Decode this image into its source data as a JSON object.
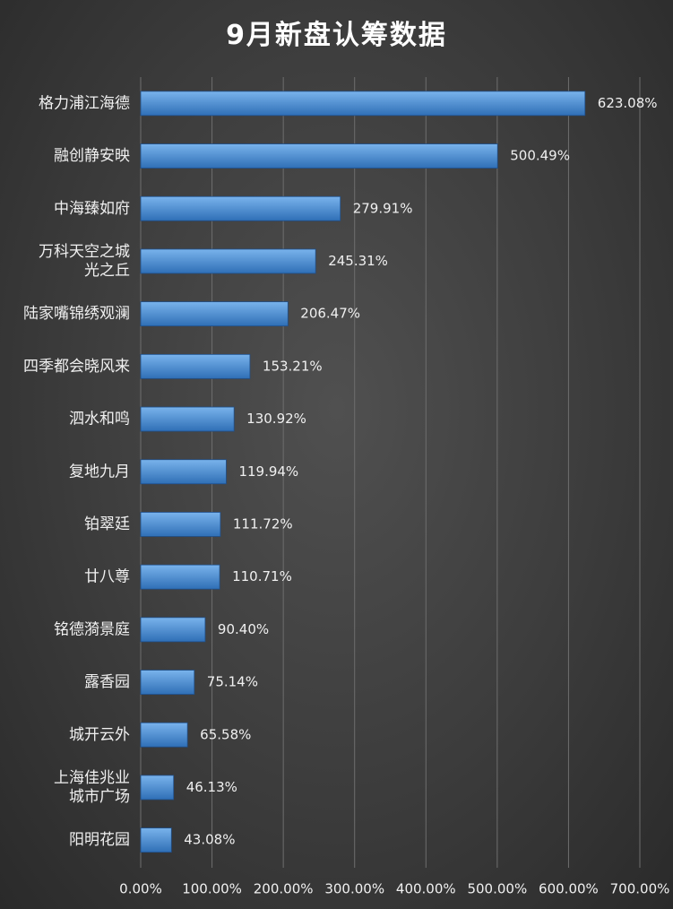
{
  "chart_data": {
    "type": "bar",
    "orientation": "horizontal",
    "title": "9月新盘认筹数据",
    "xlabel": "",
    "ylabel": "",
    "categories": [
      [
        "格力浦江海德"
      ],
      [
        "融创静安映"
      ],
      [
        "中海臻如府"
      ],
      [
        "万科天空之城",
        "光之丘"
      ],
      [
        "陆家嘴锦绣观澜"
      ],
      [
        "四季都会晓风来"
      ],
      [
        "泗水和鸣"
      ],
      [
        "复地九月"
      ],
      [
        "铂翠廷"
      ],
      [
        "廿八尊"
      ],
      [
        "铭德漪景庭"
      ],
      [
        "露香园"
      ],
      [
        "城开云外"
      ],
      [
        "上海佳兆业",
        "城市广场"
      ],
      [
        "阳明花园"
      ]
    ],
    "values": [
      623.08,
      500.49,
      279.91,
      245.31,
      206.47,
      153.21,
      130.92,
      119.94,
      111.72,
      110.71,
      90.4,
      75.14,
      65.58,
      46.13,
      43.08
    ],
    "value_labels": [
      "623.08%",
      "500.49%",
      "279.91%",
      "245.31%",
      "206.47%",
      "153.21%",
      "130.92%",
      "119.94%",
      "111.72%",
      "110.71%",
      "90.40%",
      "75.14%",
      "65.58%",
      "46.13%",
      "43.08%"
    ],
    "xlim": [
      0,
      700
    ],
    "ticks": [
      0,
      100,
      200,
      300,
      400,
      500,
      600,
      700
    ],
    "tick_labels": [
      "0.00%",
      "100.00%",
      "200.00%",
      "300.00%",
      "400.00%",
      "500.00%",
      "600.00%",
      "700.00%"
    ],
    "grid": true,
    "legend": "none",
    "colors": {
      "bar_top": "#79b3ec",
      "bar_bottom": "#2f6fb6",
      "bar_stroke": "#1f4f8a",
      "text": "#f0f0f0",
      "grid": "#6e6e6e"
    }
  }
}
